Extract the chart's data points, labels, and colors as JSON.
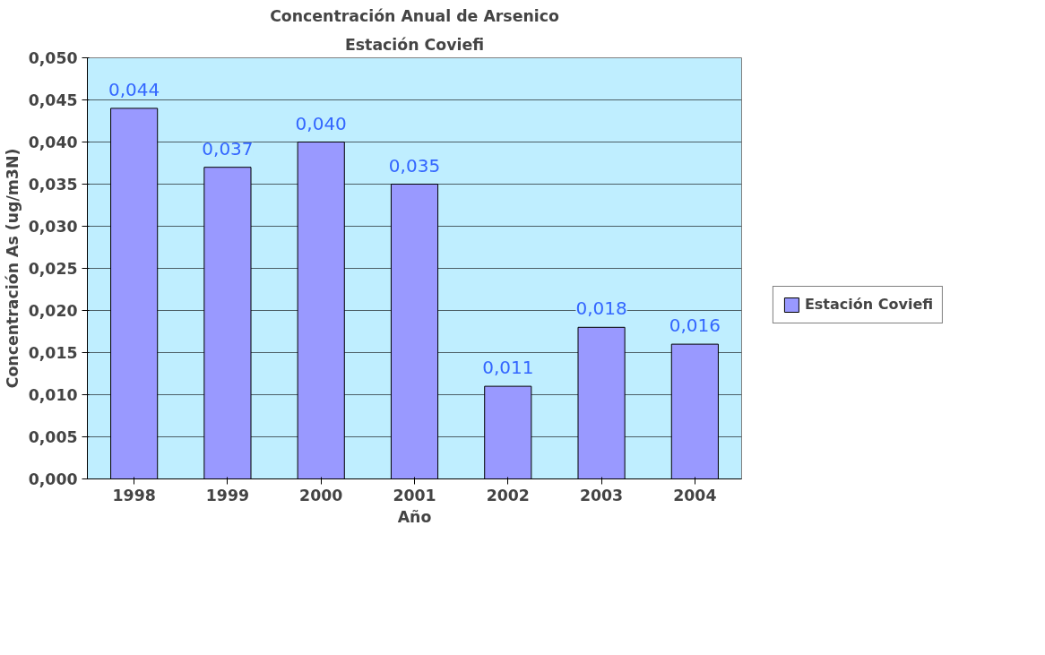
{
  "chart_data": {
    "type": "bar",
    "title": "Concentración Anual de Arsenico",
    "subtitle": "Estación Coviefi",
    "xlabel": "Año",
    "ylabel": "Concentración As (ug/m3N)",
    "categories": [
      "1998",
      "1999",
      "2000",
      "2001",
      "2002",
      "2003",
      "2004"
    ],
    "series": [
      {
        "name": "Estación Coviefi",
        "color": "#9999ff",
        "values": [
          0.044,
          0.037,
          0.04,
          0.035,
          0.011,
          0.018,
          0.016
        ]
      }
    ],
    "value_labels": [
      "0,044",
      "0,037",
      "0,040",
      "0,035",
      "0,011",
      "0,018",
      "0,016"
    ],
    "ylim": [
      0,
      0.05
    ],
    "yticks": [
      {
        "value": 0,
        "label": "0,000"
      },
      {
        "value": 0.005,
        "label": "0,005"
      },
      {
        "value": 0.01,
        "label": "0,010"
      },
      {
        "value": 0.015,
        "label": "0,015"
      },
      {
        "value": 0.02,
        "label": "0,020"
      },
      {
        "value": 0.025,
        "label": "0,025"
      },
      {
        "value": 0.03,
        "label": "0,030"
      },
      {
        "value": 0.035,
        "label": "0,035"
      },
      {
        "value": 0.04,
        "label": "0,040"
      },
      {
        "value": 0.045,
        "label": "0,045"
      },
      {
        "value": 0.05,
        "label": "0,050"
      }
    ],
    "grid": "y",
    "legend": "right"
  }
}
